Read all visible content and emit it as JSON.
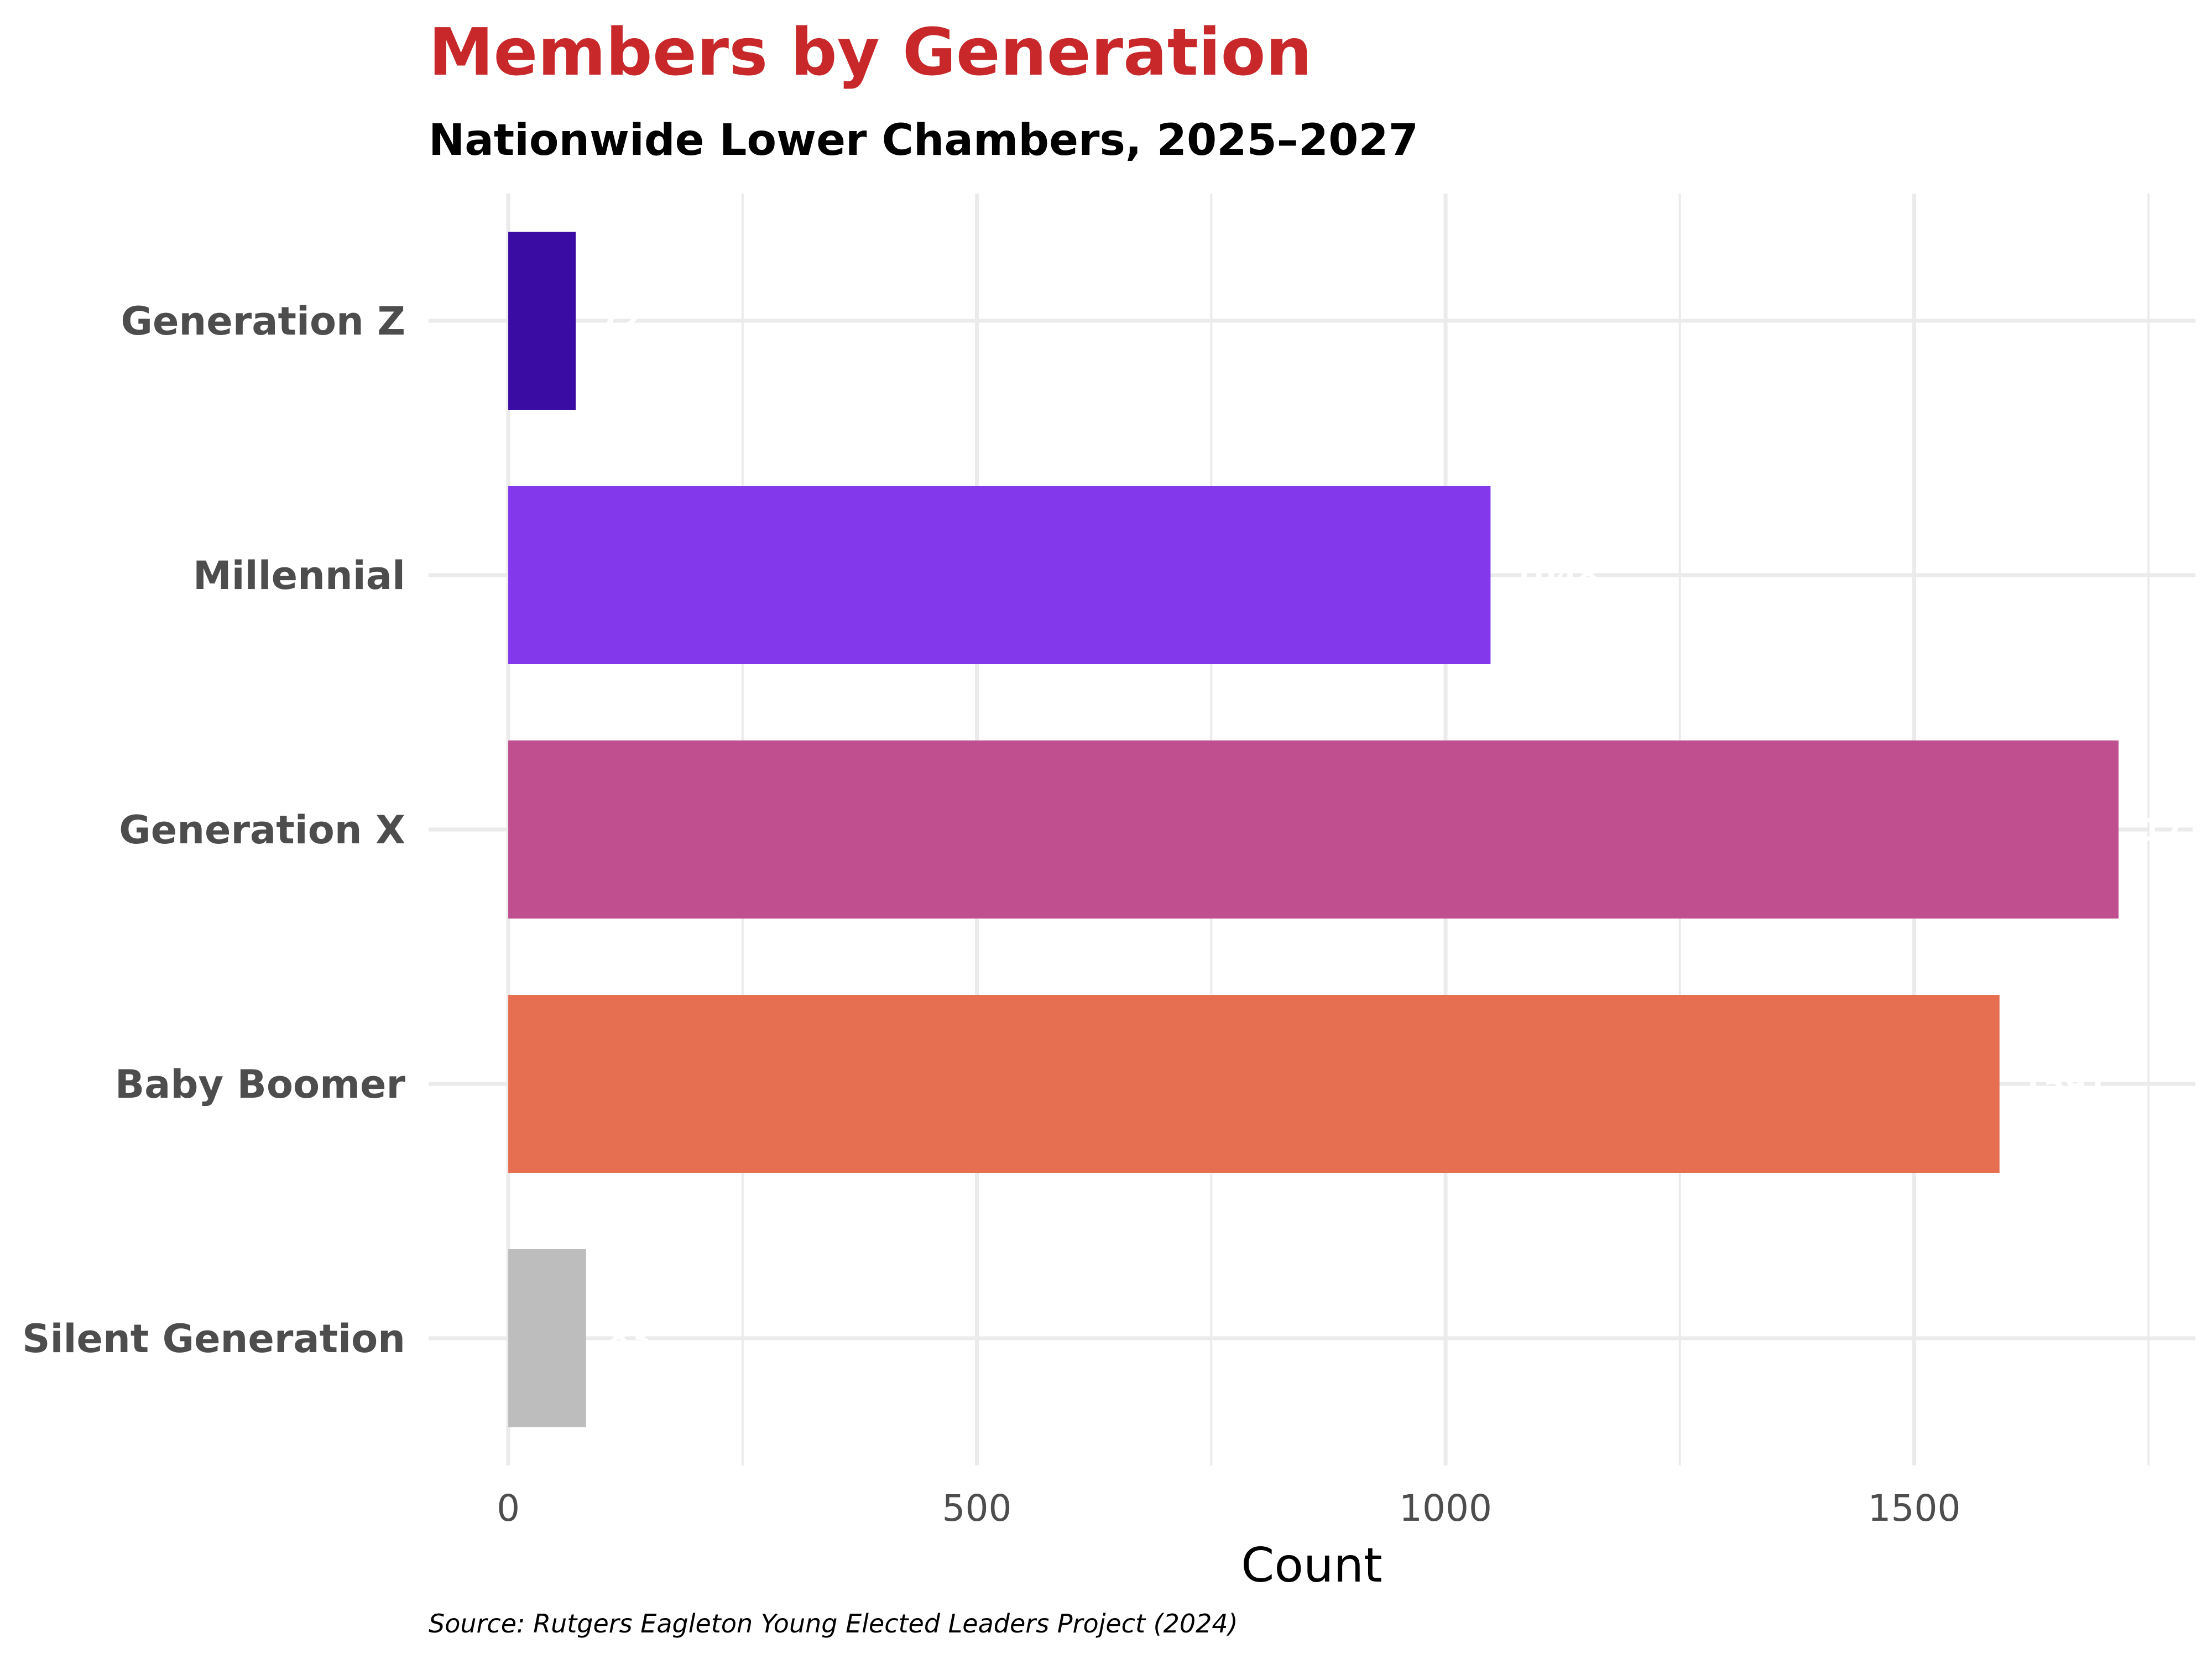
{
  "chart_data": {
    "type": "bar",
    "orientation": "horizontal",
    "title": "Members by Generation",
    "subtitle": "Nationwide Lower Chambers, 2025–2027",
    "xlabel": "Count",
    "ylabel": "",
    "caption": "Source: Rutgers Eagleton Young Elected Leaders Project (2024)",
    "categories": [
      "Generation Z",
      "Millennial",
      "Generation X",
      "Baby Boomer",
      "Silent Generation"
    ],
    "values": [
      72,
      1048,
      1718,
      1591,
      83
    ],
    "colors": [
      "#3a0ca3",
      "#8338ec",
      "#bf4f8f",
      "#e76f51",
      "#bdbdbd"
    ],
    "xlim": [
      -85,
      1800
    ],
    "xticks": [
      0,
      500,
      1000,
      1500
    ],
    "xtick_labels": [
      "0",
      "500",
      "1000",
      "1500"
    ],
    "grid": true,
    "legend": "none"
  }
}
